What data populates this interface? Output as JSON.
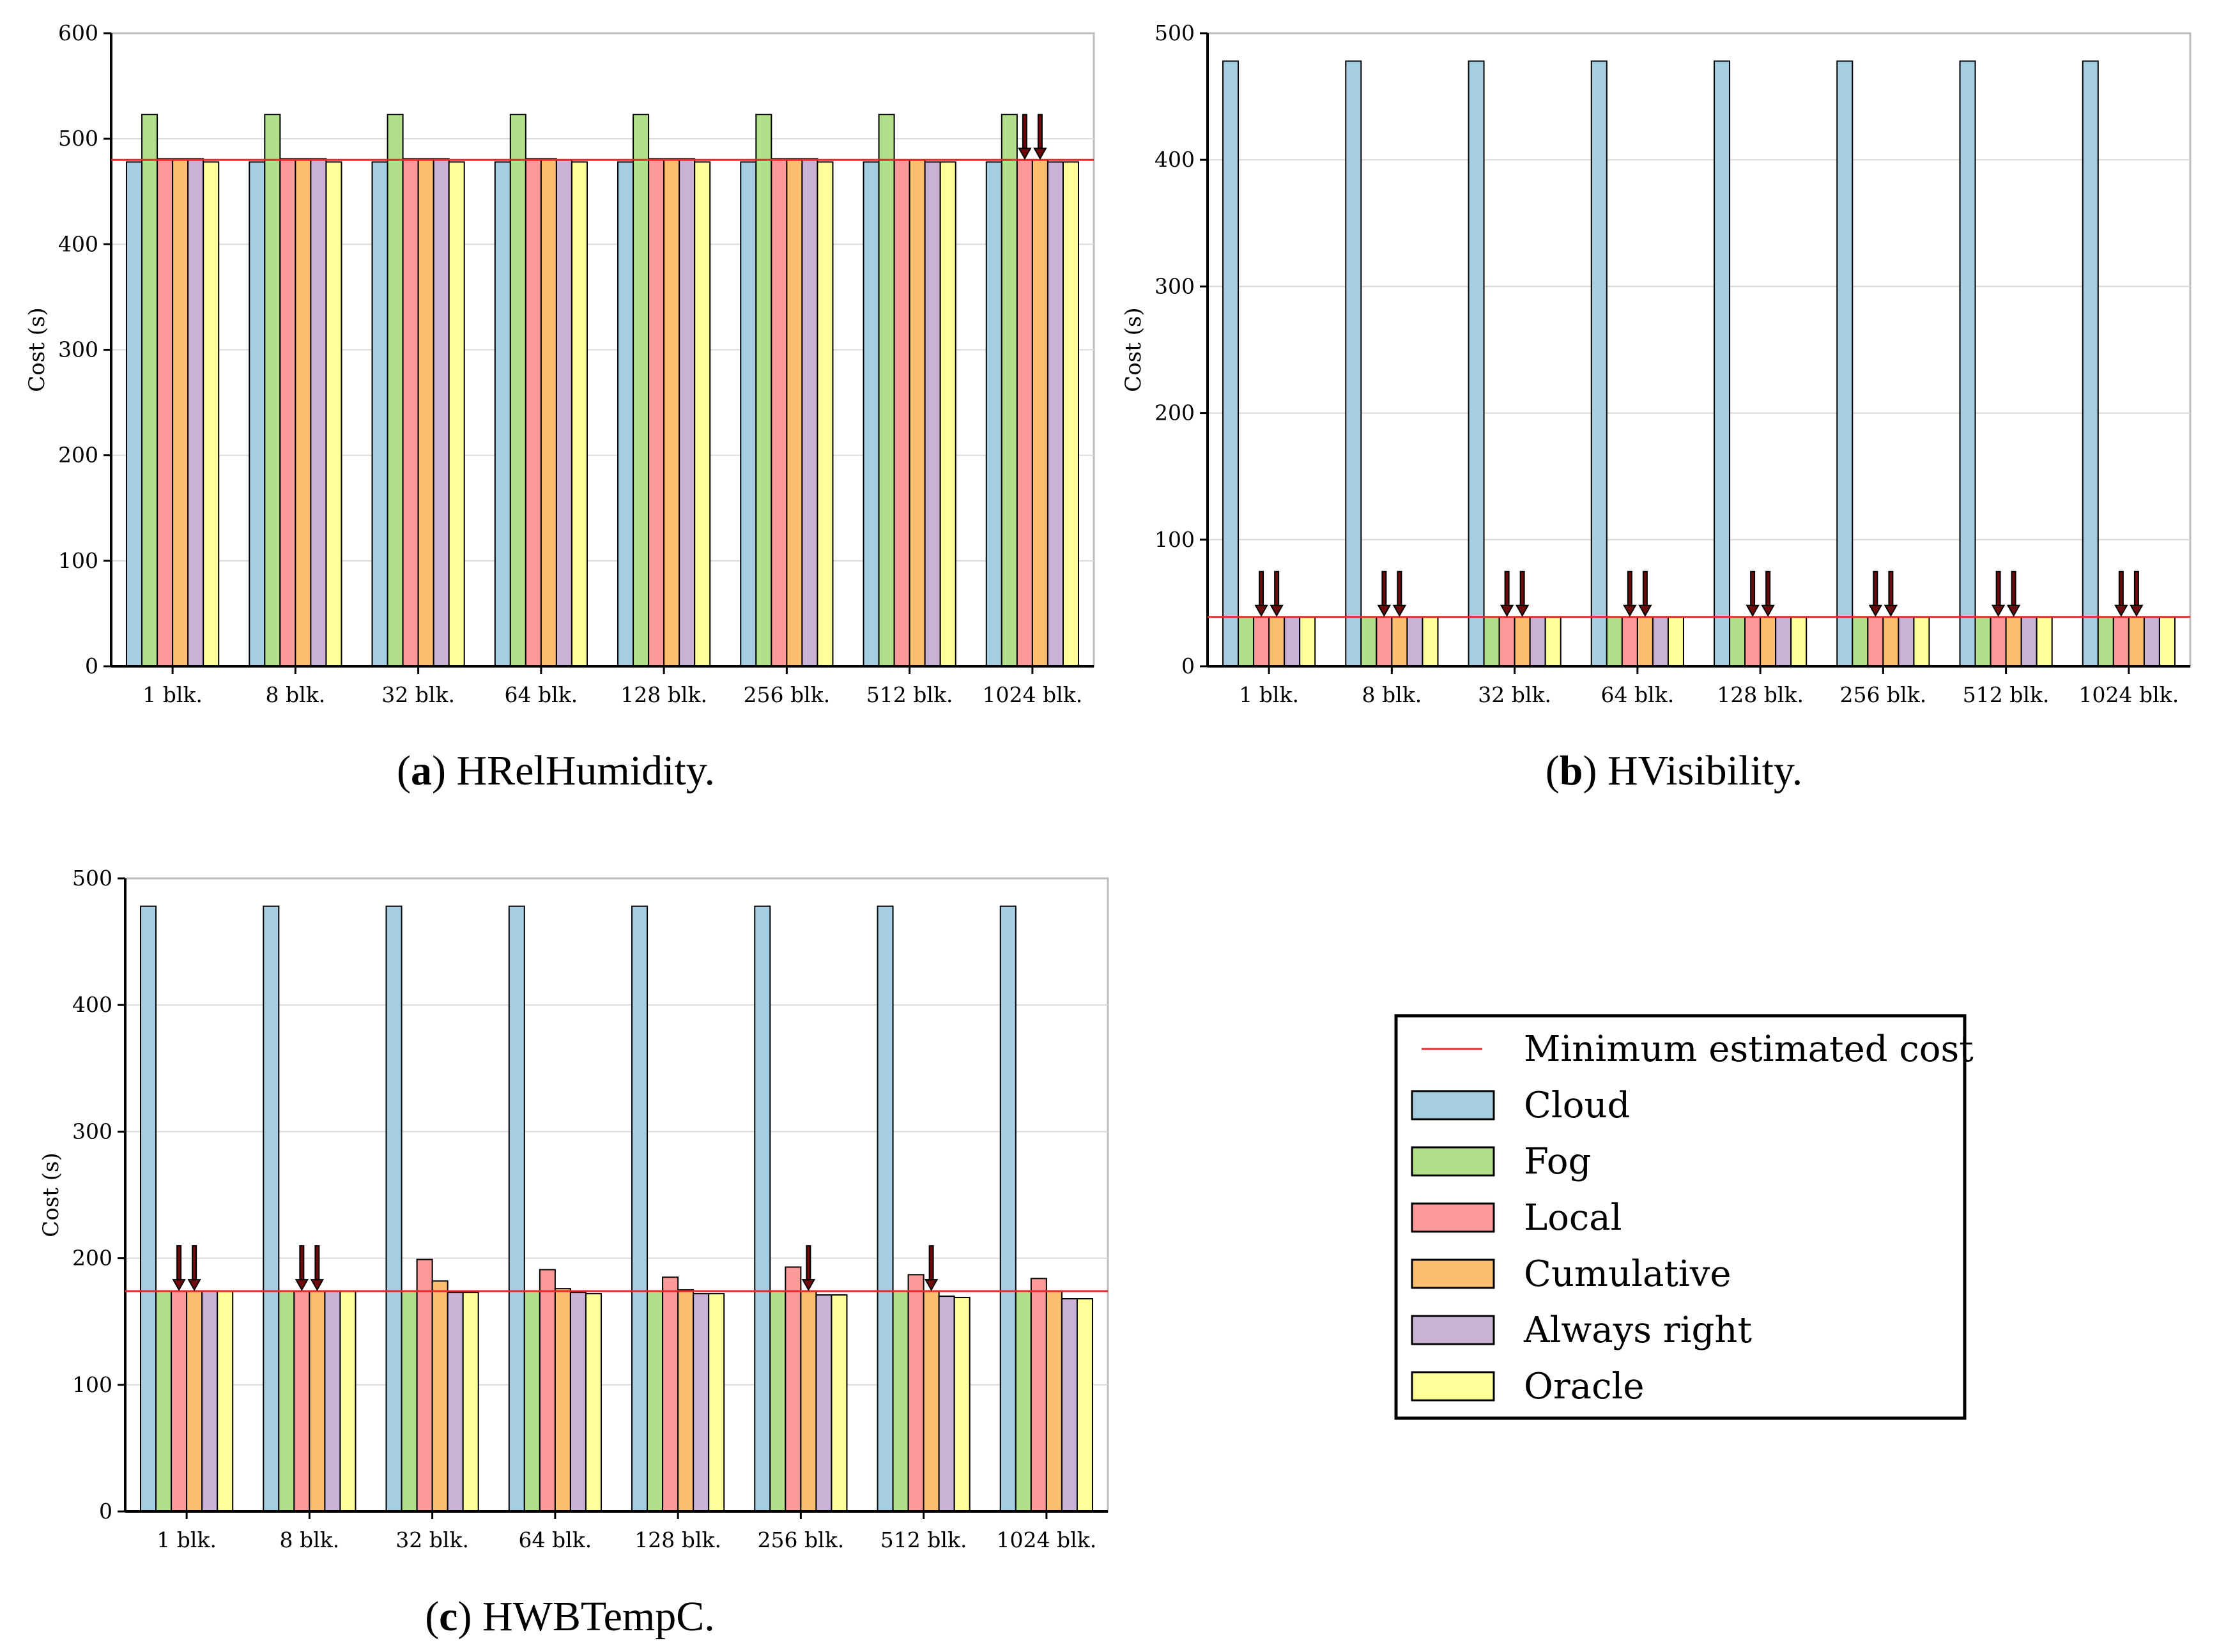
{
  "colors": {
    "Cloud": "#a6cee3",
    "Fog": "#b2df8a",
    "Local": "#fb9a99",
    "Cumulative": "#fdbf6f",
    "Always right": "#cab2d6",
    "Oracle": "#ffff99",
    "min_line": "#e8282b",
    "arrow": "#6e0a0a",
    "grid": "#d9d9d9"
  },
  "legend": {
    "items": [
      {
        "label": "Minimum estimated cost",
        "kind": "line",
        "key": "min_line"
      },
      {
        "label": "Cloud",
        "kind": "box",
        "key": "Cloud"
      },
      {
        "label": "Fog",
        "kind": "box",
        "key": "Fog"
      },
      {
        "label": "Local",
        "kind": "box",
        "key": "Local"
      },
      {
        "label": "Cumulative",
        "kind": "box",
        "key": "Cumulative"
      },
      {
        "label": "Always right",
        "kind": "box",
        "key": "Always right"
      },
      {
        "label": "Oracle",
        "kind": "box",
        "key": "Oracle"
      }
    ]
  },
  "chart_data": [
    {
      "id": "a",
      "type": "bar",
      "caption_letter": "a",
      "caption_text": "HRelHumidity.",
      "ylabel": "Cost (s)",
      "ylim": [
        0,
        600
      ],
      "yticks": [
        0,
        100,
        200,
        300,
        400,
        500,
        600
      ],
      "min_estimated_cost": 480,
      "categories": [
        "1 blk.",
        "8 blk.",
        "32 blk.",
        "64 blk.",
        "128 blk.",
        "256 blk.",
        "512 blk.",
        "1024 blk."
      ],
      "series": [
        {
          "name": "Cloud",
          "values": [
            478,
            478,
            478,
            478,
            478,
            478,
            478,
            478
          ]
        },
        {
          "name": "Fog",
          "values": [
            523,
            523,
            523,
            523,
            523,
            523,
            523,
            523
          ]
        },
        {
          "name": "Local",
          "values": [
            481,
            481,
            481,
            481,
            481,
            481,
            480,
            480
          ]
        },
        {
          "name": "Cumulative",
          "values": [
            481,
            481,
            481,
            481,
            481,
            481,
            480,
            480
          ]
        },
        {
          "name": "Always right",
          "values": [
            481,
            481,
            481,
            480,
            481,
            481,
            478,
            478
          ]
        },
        {
          "name": "Oracle",
          "values": [
            478,
            478,
            478,
            478,
            478,
            478,
            478,
            478
          ]
        }
      ],
      "arrows": [
        {
          "category": "1024 blk.",
          "series": "Local"
        },
        {
          "category": "1024 blk.",
          "series": "Cumulative"
        }
      ]
    },
    {
      "id": "b",
      "type": "bar",
      "caption_letter": "b",
      "caption_text": "HVisibility.",
      "ylabel": "Cost (s)",
      "ylim": [
        0,
        500
      ],
      "yticks": [
        0,
        100,
        200,
        300,
        400,
        500
      ],
      "min_estimated_cost": 39,
      "categories": [
        "1 blk.",
        "8 blk.",
        "32 blk.",
        "64 blk.",
        "128 blk.",
        "256 blk.",
        "512 blk.",
        "1024 blk."
      ],
      "series": [
        {
          "name": "Cloud",
          "values": [
            478,
            478,
            478,
            478,
            478,
            478,
            478,
            478
          ]
        },
        {
          "name": "Fog",
          "values": [
            39,
            39,
            39,
            39,
            39,
            39,
            39,
            39
          ]
        },
        {
          "name": "Local",
          "values": [
            39,
            39,
            39,
            39,
            39,
            39,
            39,
            39
          ]
        },
        {
          "name": "Cumulative",
          "values": [
            39,
            39,
            39,
            39,
            39,
            39,
            39,
            39
          ]
        },
        {
          "name": "Always right",
          "values": [
            39,
            39,
            39,
            39,
            39,
            39,
            39,
            39
          ]
        },
        {
          "name": "Oracle",
          "values": [
            39,
            39,
            39,
            39,
            39,
            39,
            39,
            39
          ]
        }
      ],
      "arrows": [
        {
          "category": "1 blk.",
          "series": "Local"
        },
        {
          "category": "1 blk.",
          "series": "Cumulative"
        },
        {
          "category": "8 blk.",
          "series": "Local"
        },
        {
          "category": "8 blk.",
          "series": "Cumulative"
        },
        {
          "category": "32 blk.",
          "series": "Local"
        },
        {
          "category": "32 blk.",
          "series": "Cumulative"
        },
        {
          "category": "64 blk.",
          "series": "Local"
        },
        {
          "category": "64 blk.",
          "series": "Cumulative"
        },
        {
          "category": "128 blk.",
          "series": "Local"
        },
        {
          "category": "128 blk.",
          "series": "Cumulative"
        },
        {
          "category": "256 blk.",
          "series": "Local"
        },
        {
          "category": "256 blk.",
          "series": "Cumulative"
        },
        {
          "category": "512 blk.",
          "series": "Local"
        },
        {
          "category": "512 blk.",
          "series": "Cumulative"
        },
        {
          "category": "1024 blk.",
          "series": "Local"
        },
        {
          "category": "1024 blk.",
          "series": "Cumulative"
        }
      ]
    },
    {
      "id": "c",
      "type": "bar",
      "caption_letter": "c",
      "caption_text": "HWBTempC.",
      "ylabel": "Cost (s)",
      "ylim": [
        0,
        500
      ],
      "yticks": [
        0,
        100,
        200,
        300,
        400,
        500
      ],
      "min_estimated_cost": 174,
      "categories": [
        "1 blk.",
        "8 blk.",
        "32 blk.",
        "64 blk.",
        "128 blk.",
        "256 blk.",
        "512 blk.",
        "1024 blk."
      ],
      "series": [
        {
          "name": "Cloud",
          "values": [
            478,
            478,
            478,
            478,
            478,
            478,
            478,
            478
          ]
        },
        {
          "name": "Fog",
          "values": [
            174,
            174,
            174,
            174,
            174,
            174,
            174,
            174
          ]
        },
        {
          "name": "Local",
          "values": [
            174,
            174,
            199,
            191,
            185,
            193,
            187,
            184
          ]
        },
        {
          "name": "Cumulative",
          "values": [
            174,
            174,
            182,
            176,
            175,
            174,
            174,
            174
          ]
        },
        {
          "name": "Always right",
          "values": [
            174,
            174,
            173,
            173,
            172,
            171,
            170,
            168
          ]
        },
        {
          "name": "Oracle",
          "values": [
            174,
            174,
            173,
            172,
            172,
            171,
            169,
            168
          ]
        }
      ],
      "arrows": [
        {
          "category": "1 blk.",
          "series": "Local"
        },
        {
          "category": "1 blk.",
          "series": "Cumulative"
        },
        {
          "category": "8 blk.",
          "series": "Local"
        },
        {
          "category": "8 blk.",
          "series": "Cumulative"
        },
        {
          "category": "256 blk.",
          "series": "Cumulative"
        },
        {
          "category": "512 blk.",
          "series": "Cumulative"
        }
      ]
    }
  ]
}
